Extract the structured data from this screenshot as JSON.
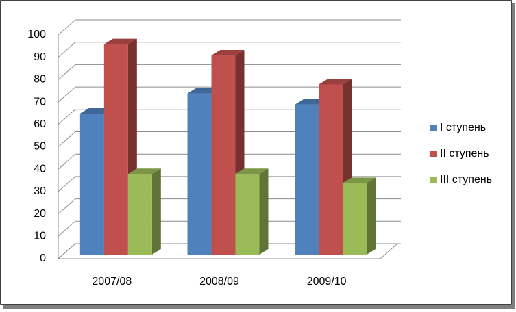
{
  "chart_data": {
    "type": "bar3d",
    "categories": [
      "2007/08",
      "2008/09",
      "2009/10"
    ],
    "series": [
      {
        "name": "I ступень",
        "color": "#4f81bd",
        "values": [
          63,
          72,
          67
        ]
      },
      {
        "name": "II ступень",
        "color": "#c0504d",
        "values": [
          94,
          89,
          76
        ]
      },
      {
        "name": "III ступень",
        "color": "#9bbb59",
        "values": [
          36,
          36,
          32
        ]
      }
    ],
    "ylim": [
      0,
      100
    ],
    "yticks": [
      0,
      10,
      20,
      30,
      40,
      50,
      60,
      70,
      80,
      90,
      100
    ],
    "grid": true,
    "legend": "right"
  }
}
